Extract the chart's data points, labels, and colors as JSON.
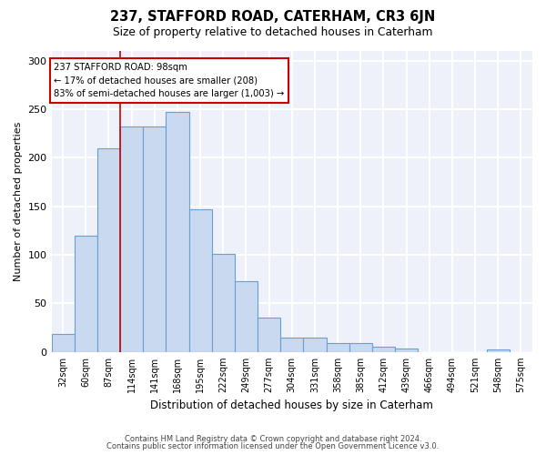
{
  "title": "237, STAFFORD ROAD, CATERHAM, CR3 6JN",
  "subtitle": "Size of property relative to detached houses in Caterham",
  "xlabel": "Distribution of detached houses by size in Caterham",
  "ylabel": "Number of detached properties",
  "bar_color": "#c8d9f0",
  "bar_edge_color": "#6aa0d0",
  "background_color": "#eef1fa",
  "grid_color": "#ffffff",
  "bin_labels": [
    "32sqm",
    "60sqm",
    "87sqm",
    "114sqm",
    "141sqm",
    "168sqm",
    "195sqm",
    "222sqm",
    "249sqm",
    "277sqm",
    "304sqm",
    "331sqm",
    "358sqm",
    "385sqm",
    "412sqm",
    "439sqm",
    "466sqm",
    "494sqm",
    "521sqm",
    "548sqm",
    "575sqm"
  ],
  "bar_values": [
    19,
    120,
    210,
    232,
    232,
    247,
    147,
    101,
    73,
    35,
    15,
    15,
    9,
    9,
    5,
    4,
    0,
    0,
    0,
    3,
    0
  ],
  "annotation_title": "237 STAFFORD ROAD: 98sqm",
  "annotation_line1": "← 17% of detached houses are smaller (208)",
  "annotation_line2": "83% of semi-detached houses are larger (1,003) →",
  "red_line_bin": 2,
  "ylim": [
    0,
    310
  ],
  "yticks": [
    0,
    50,
    100,
    150,
    200,
    250,
    300
  ],
  "footnote1": "Contains HM Land Registry data © Crown copyright and database right 2024.",
  "footnote2": "Contains public sector information licensed under the Open Government Licence v3.0."
}
